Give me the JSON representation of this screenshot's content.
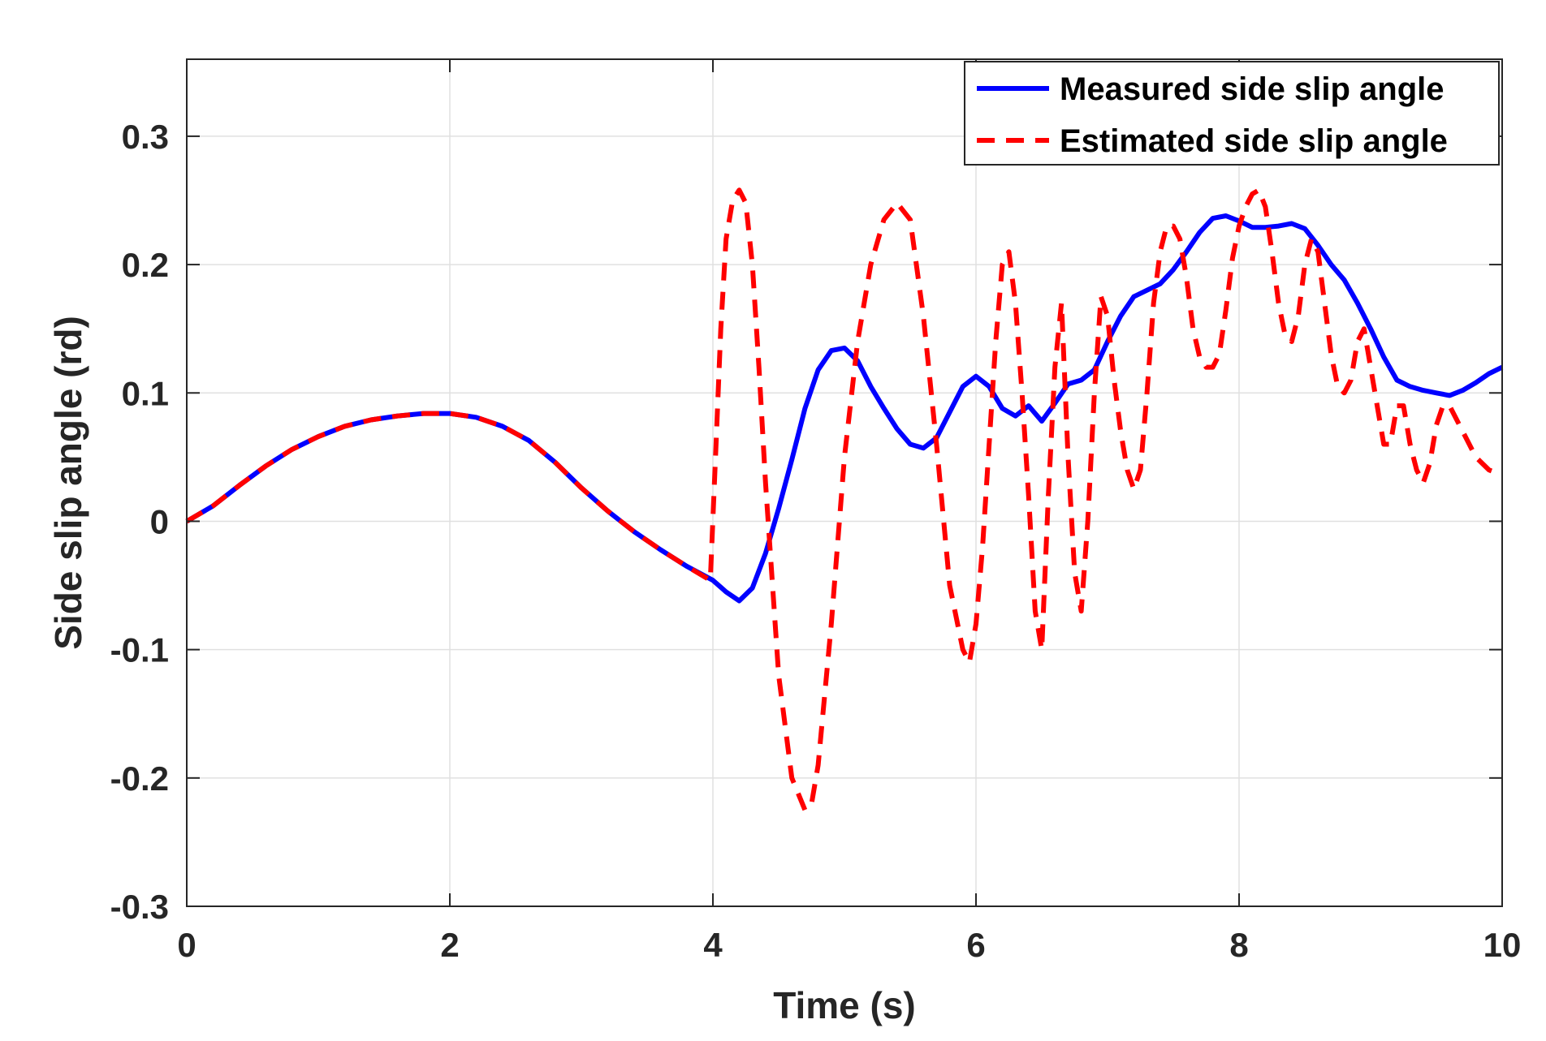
{
  "chart_data": {
    "type": "line",
    "title": "",
    "xlabel": "Time (s)",
    "ylabel": "Side slip angle (rd)",
    "xlim": [
      0,
      10
    ],
    "ylim": [
      -0.3,
      0.36
    ],
    "xticks": [
      0,
      2,
      4,
      6,
      8,
      10
    ],
    "yticks": [
      -0.3,
      -0.2,
      -0.1,
      0,
      0.1,
      0.2,
      0.3
    ],
    "xtick_labels": [
      "0",
      "2",
      "4",
      "6",
      "8",
      "10"
    ],
    "ytick_labels": [
      "-0.3",
      "-0.2",
      "-0.1",
      "0",
      "0.1",
      "0.2",
      "0.3"
    ],
    "grid": true,
    "legend_position": "top-right",
    "colors": {
      "measured": "#0000ff",
      "estimated": "#ff0000",
      "grid": "#e0e0e0",
      "axis": "#262626"
    },
    "series": [
      {
        "name": "Measured side slip angle",
        "style": "solid",
        "x": [
          0,
          0.2,
          0.4,
          0.6,
          0.8,
          1.0,
          1.2,
          1.4,
          1.6,
          1.8,
          2.0,
          2.2,
          2.4,
          2.6,
          2.8,
          3.0,
          3.2,
          3.4,
          3.6,
          3.8,
          4.0,
          4.1,
          4.2,
          4.3,
          4.4,
          4.5,
          4.6,
          4.7,
          4.8,
          4.9,
          5.0,
          5.1,
          5.2,
          5.3,
          5.4,
          5.5,
          5.6,
          5.7,
          5.8,
          5.9,
          6.0,
          6.1,
          6.2,
          6.3,
          6.4,
          6.5,
          6.6,
          6.7,
          6.8,
          6.9,
          7.0,
          7.1,
          7.2,
          7.3,
          7.4,
          7.5,
          7.6,
          7.7,
          7.8,
          7.9,
          8.0,
          8.1,
          8.2,
          8.3,
          8.4,
          8.5,
          8.6,
          8.7,
          8.8,
          8.9,
          9.0,
          9.1,
          9.2,
          9.3,
          9.4,
          9.5,
          9.6,
          9.7,
          9.8,
          9.9,
          10.0
        ],
        "y": [
          0,
          0.012,
          0.028,
          0.043,
          0.056,
          0.066,
          0.074,
          0.079,
          0.082,
          0.084,
          0.084,
          0.081,
          0.074,
          0.063,
          0.046,
          0.026,
          0.008,
          -0.008,
          -0.022,
          -0.035,
          -0.046,
          -0.055,
          -0.062,
          -0.052,
          -0.025,
          0.01,
          0.048,
          0.088,
          0.118,
          0.133,
          0.135,
          0.125,
          0.105,
          0.088,
          0.072,
          0.06,
          0.057,
          0.065,
          0.085,
          0.105,
          0.113,
          0.105,
          0.088,
          0.082,
          0.09,
          0.078,
          0.092,
          0.107,
          0.11,
          0.118,
          0.14,
          0.16,
          0.175,
          0.18,
          0.185,
          0.196,
          0.21,
          0.225,
          0.236,
          0.238,
          0.234,
          0.229,
          0.229,
          0.23,
          0.232,
          0.228,
          0.215,
          0.2,
          0.188,
          0.17,
          0.15,
          0.128,
          0.11,
          0.105,
          0.102,
          0.1,
          0.098,
          0.102,
          0.108,
          0.115,
          0.12
        ]
      },
      {
        "name": "Estimated side slip angle",
        "style": "dashed",
        "x": [
          0,
          0.2,
          0.4,
          0.6,
          0.8,
          1.0,
          1.2,
          1.4,
          1.6,
          1.8,
          2.0,
          2.2,
          2.4,
          2.6,
          2.8,
          3.0,
          3.2,
          3.4,
          3.6,
          3.8,
          3.98,
          4.02,
          4.06,
          4.1,
          4.15,
          4.2,
          4.25,
          4.3,
          4.35,
          4.4,
          4.5,
          4.6,
          4.7,
          4.75,
          4.8,
          4.9,
          5.0,
          5.1,
          5.2,
          5.3,
          5.4,
          5.5,
          5.6,
          5.7,
          5.8,
          5.9,
          5.95,
          6.0,
          6.05,
          6.1,
          6.15,
          6.2,
          6.25,
          6.3,
          6.35,
          6.4,
          6.45,
          6.5,
          6.55,
          6.6,
          6.65,
          6.7,
          6.75,
          6.8,
          6.85,
          6.9,
          6.95,
          7.0,
          7.05,
          7.1,
          7.15,
          7.2,
          7.25,
          7.3,
          7.35,
          7.4,
          7.45,
          7.5,
          7.55,
          7.6,
          7.65,
          7.7,
          7.75,
          7.8,
          7.85,
          7.9,
          7.95,
          8.0,
          8.05,
          8.1,
          8.15,
          8.2,
          8.25,
          8.3,
          8.35,
          8.4,
          8.45,
          8.5,
          8.55,
          8.6,
          8.65,
          8.7,
          8.75,
          8.8,
          8.85,
          8.9,
          8.95,
          9.0,
          9.05,
          9.1,
          9.15,
          9.2,
          9.25,
          9.3,
          9.35,
          9.4,
          9.45,
          9.5,
          9.55,
          9.6,
          9.65,
          9.7,
          9.75,
          9.8,
          9.85,
          9.9,
          9.95,
          10.0
        ],
        "y": [
          0,
          0.012,
          0.028,
          0.043,
          0.056,
          0.066,
          0.074,
          0.079,
          0.082,
          0.084,
          0.084,
          0.081,
          0.074,
          0.063,
          0.046,
          0.026,
          0.008,
          -0.008,
          -0.022,
          -0.035,
          -0.046,
          0.05,
          0.15,
          0.22,
          0.25,
          0.258,
          0.248,
          0.2,
          0.12,
          0.03,
          -0.12,
          -0.2,
          -0.225,
          -0.22,
          -0.19,
          -0.08,
          0.05,
          0.14,
          0.2,
          0.235,
          0.248,
          0.235,
          0.16,
          0.06,
          -0.05,
          -0.1,
          -0.11,
          -0.08,
          -0.02,
          0.06,
          0.14,
          0.2,
          0.21,
          0.17,
          0.1,
          0.02,
          -0.07,
          -0.1,
          0.02,
          0.12,
          0.17,
          0.05,
          -0.04,
          -0.07,
          0.0,
          0.1,
          0.175,
          0.16,
          0.11,
          0.07,
          0.04,
          0.025,
          0.04,
          0.1,
          0.17,
          0.21,
          0.23,
          0.23,
          0.22,
          0.19,
          0.15,
          0.128,
          0.12,
          0.12,
          0.13,
          0.165,
          0.205,
          0.23,
          0.245,
          0.255,
          0.258,
          0.245,
          0.21,
          0.17,
          0.145,
          0.14,
          0.16,
          0.2,
          0.22,
          0.21,
          0.17,
          0.13,
          0.105,
          0.1,
          0.11,
          0.14,
          0.15,
          0.12,
          0.09,
          0.06,
          0.06,
          0.09,
          0.09,
          0.06,
          0.04,
          0.03,
          0.045,
          0.075,
          0.09,
          0.09,
          0.08,
          0.07,
          0.06,
          0.05,
          0.045,
          0.04,
          0.038,
          0.04
        ]
      }
    ]
  }
}
